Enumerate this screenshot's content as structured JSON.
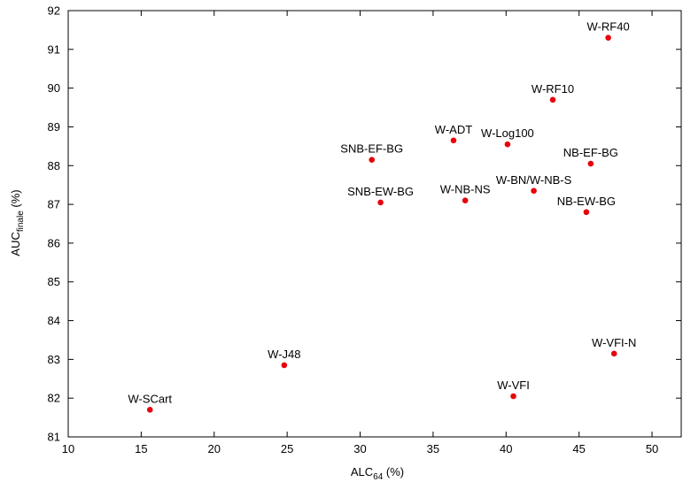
{
  "chart_data": {
    "type": "scatter",
    "xlabel": "ALC",
    "xlabel_subscript": "64",
    "xlabel_suffix": " (%)",
    "ylabel": "AUC",
    "ylabel_subscript": "finale",
    "ylabel_suffix": " (%)",
    "xlim": [
      10,
      52
    ],
    "ylim": [
      81,
      92
    ],
    "xticks": [
      10,
      15,
      20,
      25,
      30,
      35,
      40,
      45,
      50
    ],
    "yticks": [
      81,
      82,
      83,
      84,
      85,
      86,
      87,
      88,
      89,
      90,
      91,
      92
    ],
    "grid": false,
    "marker_color": "#e8000b",
    "points": [
      {
        "label": "W-RF40",
        "x": 47.0,
        "y": 91.3
      },
      {
        "label": "W-RF10",
        "x": 43.2,
        "y": 89.7
      },
      {
        "label": "W-ADT",
        "x": 36.4,
        "y": 88.65
      },
      {
        "label": "W-Log100",
        "x": 40.1,
        "y": 88.55
      },
      {
        "label": "SNB-EF-BG",
        "x": 30.8,
        "y": 88.15
      },
      {
        "label": "NB-EF-BG",
        "x": 45.8,
        "y": 88.05
      },
      {
        "label": "W-BN/W-NB-S",
        "x": 41.9,
        "y": 87.35
      },
      {
        "label": "SNB-EW-BG",
        "x": 31.4,
        "y": 87.05
      },
      {
        "label": "W-NB-NS",
        "x": 37.2,
        "y": 87.1
      },
      {
        "label": "NB-EW-BG",
        "x": 45.5,
        "y": 86.8
      },
      {
        "label": "W-VFI-N",
        "x": 47.4,
        "y": 83.15
      },
      {
        "label": "W-J48",
        "x": 24.8,
        "y": 82.85
      },
      {
        "label": "W-VFI",
        "x": 40.5,
        "y": 82.05
      },
      {
        "label": "W-SCart",
        "x": 15.6,
        "y": 81.7
      }
    ]
  }
}
